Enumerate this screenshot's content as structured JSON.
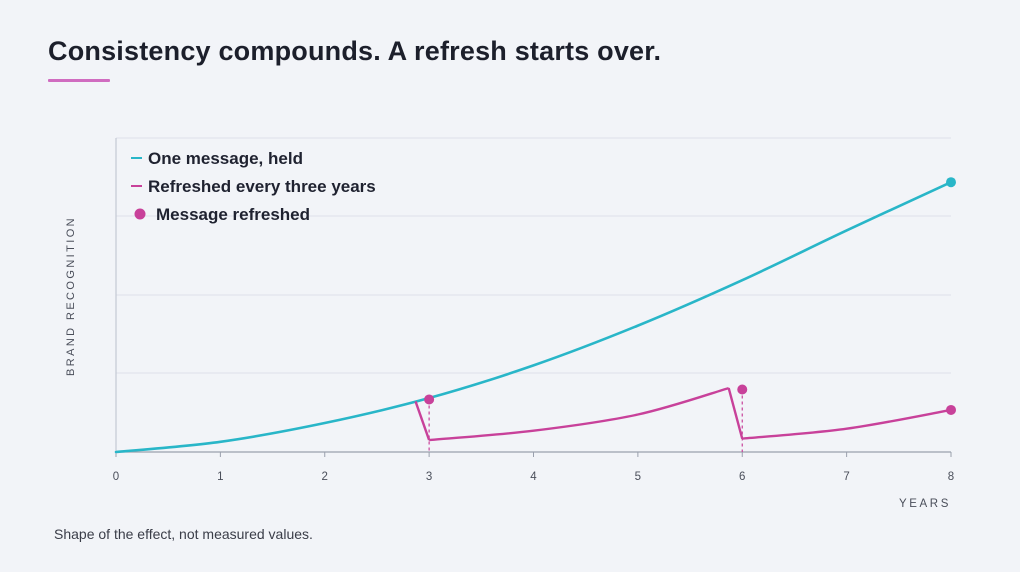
{
  "title": "Consistency compounds. A refresh starts over.",
  "footnote": "Shape of the effect, not measured values.",
  "colors": {
    "held": "#29b6c8",
    "refreshed": "#c8419a",
    "accent_rule": "#d06cc0",
    "grid": "#dde1ea",
    "axis": "#9aa0ad"
  },
  "chart_data": {
    "type": "line",
    "xlabel": "YEARS",
    "ylabel": "BRAND RECOGNITION",
    "xlim": [
      0,
      8
    ],
    "ylim": [
      0,
      100
    ],
    "x_ticks": [
      0,
      1,
      2,
      3,
      4,
      5,
      6,
      7,
      8
    ],
    "y_tick_labels_shown": false,
    "grid": "horizontal",
    "legend_position": "top-left",
    "legend": [
      {
        "label": "One message, held",
        "marker": "line",
        "series": "held"
      },
      {
        "label": "Refreshed every three years",
        "marker": "line",
        "series": "refreshed"
      },
      {
        "label": "Message refreshed",
        "marker": "dot",
        "series": "refresh_markers"
      }
    ],
    "series": [
      {
        "name": "One message, held",
        "key": "held",
        "points": [
          [
            0,
            0
          ],
          [
            1,
            3.6
          ],
          [
            2,
            10.2
          ],
          [
            3,
            19
          ],
          [
            4,
            30.5
          ],
          [
            5,
            44.5
          ],
          [
            6,
            60.5
          ],
          [
            7,
            78
          ],
          [
            8,
            95
          ]
        ],
        "end_marker": true
      },
      {
        "name": "Refreshed every three years",
        "key": "refreshed",
        "points": [
          [
            2.87,
            17.8
          ],
          [
            3,
            4.2
          ],
          [
            4,
            7.5
          ],
          [
            5,
            13.2
          ],
          [
            5.87,
            22.5
          ],
          [
            6,
            4.7
          ],
          [
            7,
            8.2
          ],
          [
            8,
            14.8
          ]
        ]
      }
    ],
    "refresh_markers": [
      {
        "x": 3,
        "y": 18.5
      },
      {
        "x": 6,
        "y": 22.0
      },
      {
        "x": 8,
        "y": 14.8
      }
    ]
  }
}
